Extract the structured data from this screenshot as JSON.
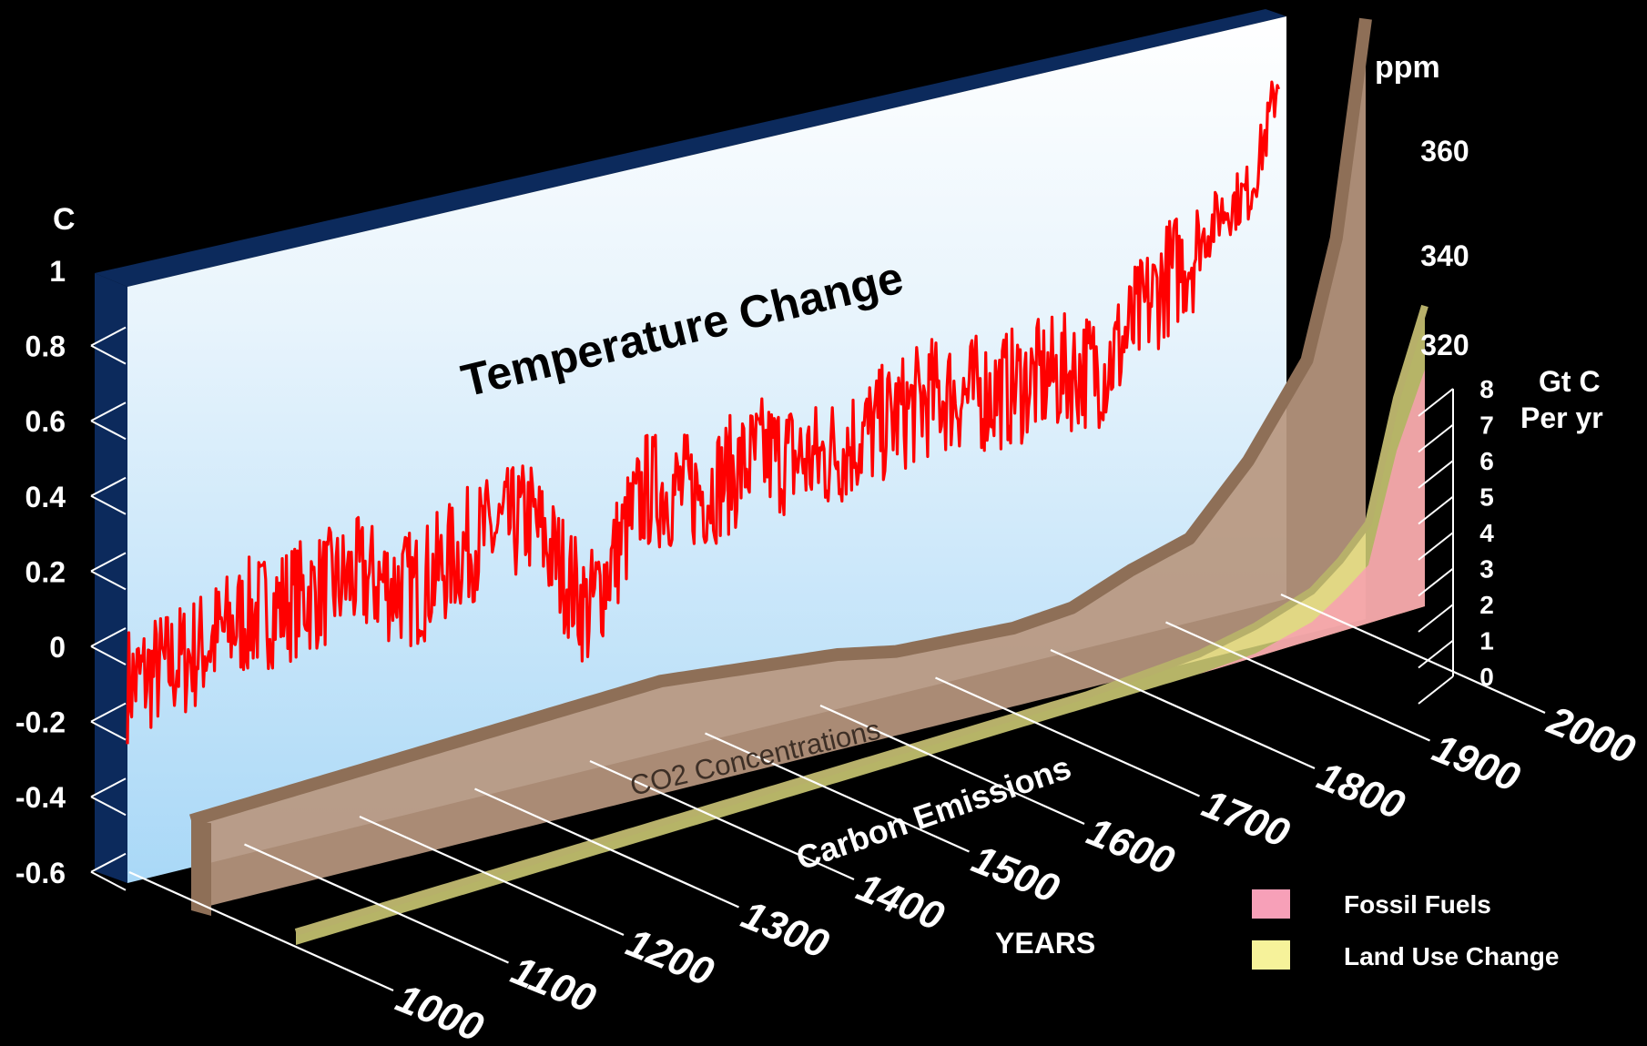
{
  "chart_data": [
    {
      "type": "line",
      "title": "Temperature Change",
      "ylabel": "C",
      "xlabel": "YEARS",
      "ylim": [
        -0.6,
        1
      ],
      "yticks": [
        "1",
        "0.8",
        "0.6",
        "0.4",
        "0.2",
        "0",
        "-0.2",
        "-0.4",
        "-0.6"
      ],
      "xticks": [
        "1000",
        "1100",
        "1200",
        "1300",
        "1400",
        "1500",
        "1600",
        "1700",
        "1800",
        "1900",
        "2000"
      ],
      "series": [
        {
          "color": "#ff0000",
          "x": [
            1000,
            1050,
            1100,
            1150,
            1200,
            1250,
            1300,
            1350,
            1400,
            1450,
            1500,
            1550,
            1600,
            1650,
            1700,
            1750,
            1800,
            1850,
            1900,
            1925,
            1950,
            1975,
            1990,
            2000
          ],
          "y": [
            -0.1,
            -0.06,
            0.02,
            0.05,
            0.08,
            0.02,
            0.12,
            0.16,
            -0.12,
            0.18,
            0.15,
            0.22,
            0.18,
            0.24,
            0.3,
            0.28,
            0.3,
            0.3,
            0.5,
            0.56,
            0.66,
            0.7,
            0.86,
            1.0
          ]
        }
      ]
    },
    {
      "type": "area",
      "title": "CO2 Concentrations",
      "ylabel": "ppm",
      "yticks": [
        "360",
        "340",
        "320"
      ],
      "series": [
        {
          "color": "#b9977f",
          "x": [
            1000,
            1100,
            1200,
            1300,
            1400,
            1500,
            1550,
            1600,
            1700,
            1750,
            1800,
            1850,
            1900,
            1950,
            1975,
            2000
          ],
          "y": [
            279,
            280,
            281,
            282,
            283,
            281,
            280,
            278,
            277,
            278,
            282,
            285,
            296,
            311,
            331,
            368
          ]
        }
      ]
    },
    {
      "type": "area",
      "title": "Carbon Emissions",
      "ylabel": "Gt C Per yr",
      "ylim": [
        0,
        8
      ],
      "yticks": [
        "8",
        "7",
        "6",
        "5",
        "4",
        "3",
        "2",
        "1",
        "0"
      ],
      "series": [
        {
          "name": "Fossil Fuels",
          "color": "#f7a0b0",
          "x": [
            1800,
            1850,
            1900,
            1925,
            1950,
            1975,
            2000
          ],
          "y": [
            0,
            0.1,
            0.5,
            1.0,
            1.6,
            4.5,
            6.5
          ]
        },
        {
          "name": "Land Use Change",
          "color": "#f3f08a",
          "x": [
            1700,
            1750,
            1800,
            1850,
            1900,
            1925,
            1950,
            1975,
            2000
          ],
          "y": [
            0.1,
            0.2,
            0.3,
            0.5,
            0.6,
            0.7,
            0.9,
            1.2,
            1.5
          ]
        }
      ]
    }
  ]
}
